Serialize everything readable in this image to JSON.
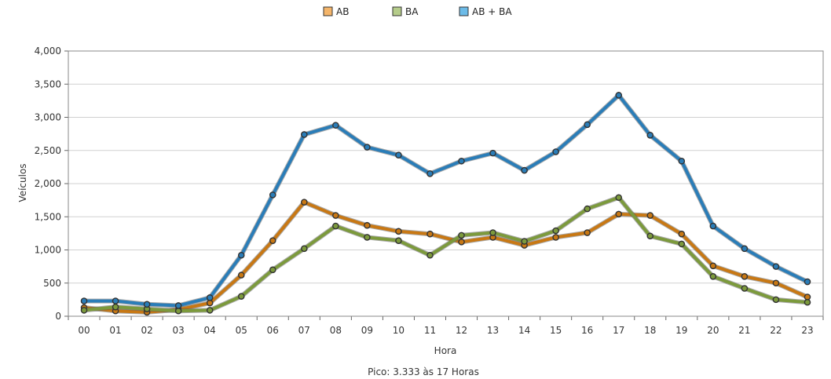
{
  "footer": "Pico: 3.333 às 17 Horas",
  "chart_data": {
    "type": "line",
    "xlabel": "Hora",
    "ylabel": "Veículos",
    "ylim": [
      0,
      4000
    ],
    "yticks": [
      0,
      500,
      1000,
      1500,
      2000,
      2500,
      3000,
      3500,
      4000
    ],
    "ytick_labels": [
      "0",
      "500",
      "1,000",
      "1,500",
      "2,000",
      "2,500",
      "3,000",
      "3,500",
      "4,000"
    ],
    "grid": true,
    "legend_position": "top-center",
    "categories": [
      "00",
      "01",
      "02",
      "03",
      "04",
      "05",
      "06",
      "07",
      "08",
      "09",
      "10",
      "11",
      "12",
      "13",
      "14",
      "15",
      "16",
      "17",
      "18",
      "19",
      "20",
      "21",
      "22",
      "23"
    ],
    "series": [
      {
        "name": "AB",
        "color": "#c87814",
        "legend_color": "#f4b56a",
        "values": [
          130,
          80,
          60,
          100,
          200,
          620,
          1140,
          1720,
          1520,
          1370,
          1280,
          1240,
          1120,
          1190,
          1070,
          1190,
          1260,
          1540,
          1520,
          1240,
          760,
          600,
          500,
          290
        ]
      },
      {
        "name": "BA",
        "color": "#7c9a3c",
        "legend_color": "#b5cc8a",
        "values": [
          90,
          140,
          110,
          80,
          90,
          300,
          700,
          1020,
          1360,
          1190,
          1140,
          920,
          1220,
          1260,
          1130,
          1290,
          1620,
          1790,
          1210,
          1090,
          600,
          420,
          250,
          210
        ]
      },
      {
        "name": "AB + BA",
        "color": "#2a7db8",
        "legend_color": "#6cbbe8",
        "values": [
          230,
          230,
          180,
          160,
          280,
          920,
          1830,
          2740,
          2880,
          2550,
          2430,
          2150,
          2340,
          2460,
          2200,
          2480,
          2890,
          3333,
          2730,
          2340,
          1360,
          1020,
          750,
          520
        ]
      }
    ]
  }
}
